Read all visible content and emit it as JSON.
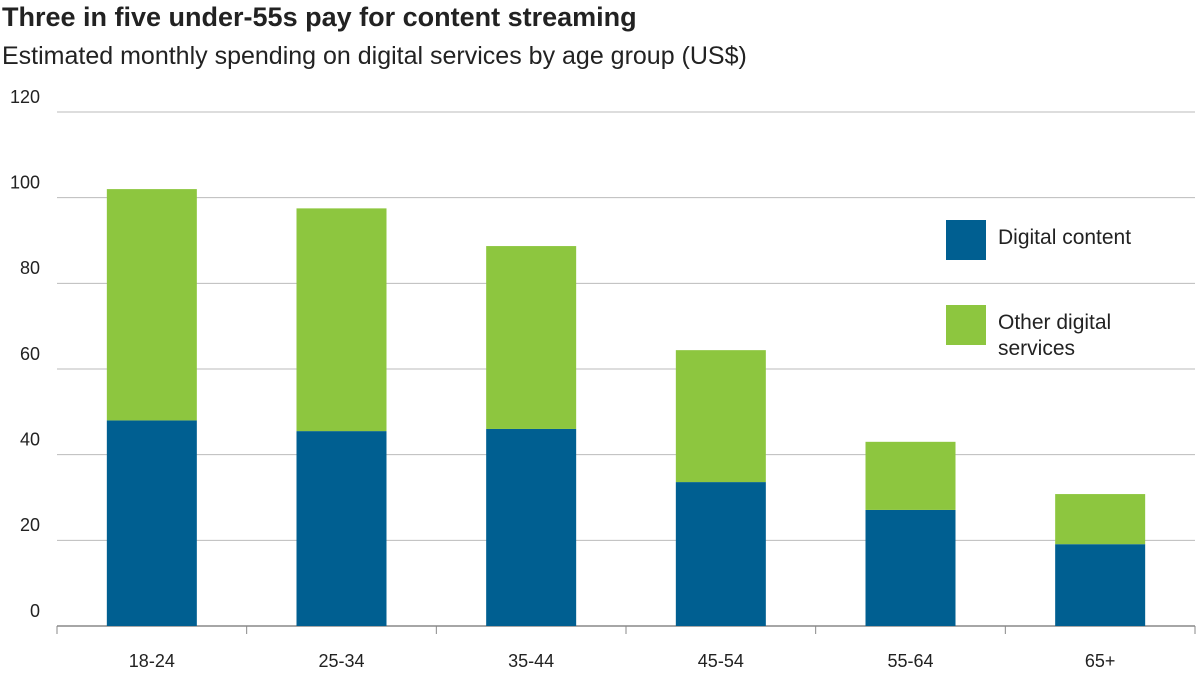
{
  "chart_data": {
    "type": "stacked-bar",
    "title": "Three in five under-55s pay for content streaming",
    "subtitle": "Estimated monthly spending on digital services by age group (US$)",
    "categories": [
      "18-24",
      "25-34",
      "35-44",
      "45-54",
      "55-64",
      "65+"
    ],
    "series": [
      {
        "name": "Digital content",
        "color": "#005f91",
        "values": [
          48,
          45.5,
          46,
          33.6,
          27.1,
          19.1
        ]
      },
      {
        "name": "Other digital services",
        "color": "#8dc63f",
        "values": [
          54,
          52,
          42.7,
          30.8,
          15.9,
          11.7
        ]
      }
    ],
    "ylim": [
      0,
      120
    ],
    "yticks": [
      0,
      20,
      40,
      60,
      80,
      100,
      120
    ],
    "grid": true
  }
}
